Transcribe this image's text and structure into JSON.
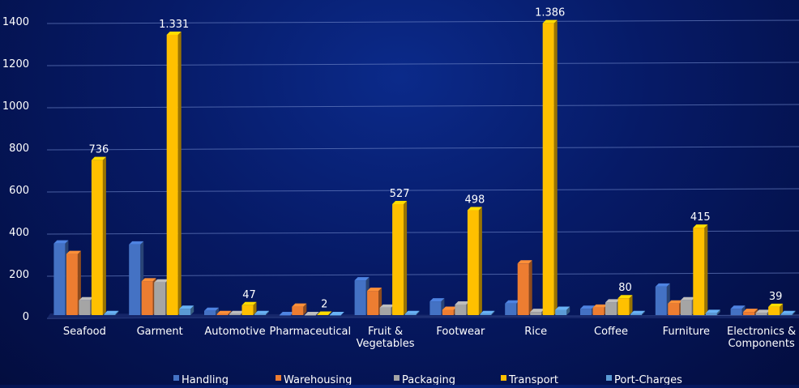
{
  "chart_data": {
    "type": "bar",
    "title": "",
    "xlabel": "",
    "ylabel": "",
    "ylim": [
      0,
      1400
    ],
    "yticks": [
      0,
      200,
      400,
      600,
      800,
      1000,
      1200,
      1400
    ],
    "grid": true,
    "legend_position": "bottom",
    "categories": [
      [
        "Seafood"
      ],
      [
        "Garment"
      ],
      [
        "Automotive"
      ],
      [
        "Pharmaceutical"
      ],
      [
        "Fruit &",
        "Vegetables"
      ],
      [
        "Footwear"
      ],
      [
        "Rice"
      ],
      [
        "Coffee"
      ],
      [
        "Furniture"
      ],
      [
        "Electronics &",
        "Components"
      ]
    ],
    "series": [
      {
        "name": "Handling",
        "color": "#4472c4",
        "values": [
          340,
          335,
          20,
          0,
          165,
          65,
          55,
          30,
          135,
          30
        ]
      },
      {
        "name": "Warehousing",
        "color": "#ed7d31",
        "values": [
          290,
          160,
          5,
          40,
          115,
          25,
          245,
          35,
          55,
          15
        ]
      },
      {
        "name": "Packaging",
        "color": "#a5a5a5",
        "values": [
          70,
          155,
          5,
          0,
          35,
          50,
          15,
          60,
          70,
          10
        ]
      },
      {
        "name": "Transport",
        "color": "#ffc000",
        "values": [
          736,
          1331,
          47,
          2,
          527,
          498,
          1386,
          80,
          415,
          39
        ]
      },
      {
        "name": "Port-Charges",
        "color": "#5b9bd5",
        "values": [
          5,
          30,
          5,
          0,
          5,
          5,
          25,
          5,
          10,
          5
        ]
      }
    ],
    "data_labels": {
      "series": "Transport",
      "labels": [
        "736",
        "1.331",
        "47",
        "2",
        "527",
        "498",
        "1.386",
        "80",
        "415",
        "39"
      ]
    }
  }
}
